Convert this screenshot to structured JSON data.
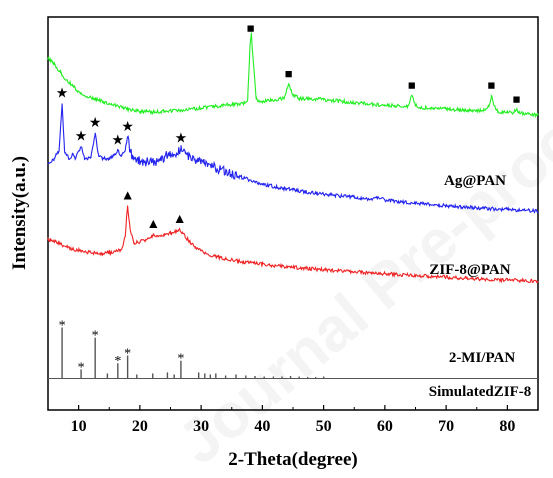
{
  "chart_data": {
    "type": "line",
    "title": "",
    "xlabel": "2-Theta(degree)",
    "ylabel": "Intensity(a.u.)",
    "xlim": [
      5,
      85
    ],
    "x_ticks": [
      10,
      20,
      30,
      40,
      50,
      60,
      70,
      80
    ],
    "y_ticks_shown": false,
    "grid": false,
    "watermark": "Journal Pre-proof",
    "series": [
      {
        "name": "Ag@PAN",
        "color": "#22ee22",
        "marker_symbol": "■",
        "peaks": [
          38.1,
          44.3,
          64.4,
          77.4,
          81.5
        ],
        "points": [
          [
            5,
            0.895
          ],
          [
            6,
            0.88
          ],
          [
            7,
            0.86
          ],
          [
            8,
            0.84
          ],
          [
            9,
            0.825
          ],
          [
            10,
            0.81
          ],
          [
            11,
            0.8
          ],
          [
            12,
            0.795
          ],
          [
            13,
            0.79
          ],
          [
            14,
            0.785
          ],
          [
            15,
            0.78
          ],
          [
            16,
            0.775
          ],
          [
            18,
            0.765
          ],
          [
            20,
            0.76
          ],
          [
            22,
            0.758
          ],
          [
            24,
            0.76
          ],
          [
            26,
            0.762
          ],
          [
            28,
            0.765
          ],
          [
            30,
            0.768
          ],
          [
            32,
            0.772
          ],
          [
            34,
            0.776
          ],
          [
            36,
            0.779
          ],
          [
            37,
            0.781
          ],
          [
            37.6,
            0.79
          ],
          [
            38.0,
            0.93
          ],
          [
            38.2,
            0.96
          ],
          [
            38.5,
            0.89
          ],
          [
            39,
            0.79
          ],
          [
            40,
            0.786
          ],
          [
            42,
            0.789
          ],
          [
            43.5,
            0.793
          ],
          [
            44.3,
            0.83
          ],
          [
            45,
            0.8
          ],
          [
            46,
            0.793
          ],
          [
            48,
            0.792
          ],
          [
            50,
            0.79
          ],
          [
            52,
            0.787
          ],
          [
            54,
            0.784
          ],
          [
            56,
            0.781
          ],
          [
            58,
            0.778
          ],
          [
            60,
            0.776
          ],
          [
            62,
            0.774
          ],
          [
            63.8,
            0.774
          ],
          [
            64.4,
            0.8
          ],
          [
            65,
            0.775
          ],
          [
            66,
            0.77
          ],
          [
            68,
            0.768
          ],
          [
            70,
            0.766
          ],
          [
            72,
            0.764
          ],
          [
            74,
            0.762
          ],
          [
            76,
            0.762
          ],
          [
            77,
            0.775
          ],
          [
            77.4,
            0.8
          ],
          [
            77.8,
            0.775
          ],
          [
            78.5,
            0.759
          ],
          [
            80,
            0.756
          ],
          [
            81,
            0.757
          ],
          [
            81.5,
            0.764
          ],
          [
            82,
            0.756
          ],
          [
            83,
            0.753
          ],
          [
            85,
            0.75
          ]
        ]
      },
      {
        "name": "ZIF-8@PAN",
        "color": "#2222ee",
        "marker_symbol": "★",
        "peaks": [
          7.3,
          10.4,
          12.7,
          16.4,
          18.0,
          26.7
        ],
        "points": [
          [
            5,
            0.628
          ],
          [
            6,
            0.64
          ],
          [
            6.8,
            0.66
          ],
          [
            7.3,
            0.78
          ],
          [
            7.7,
            0.66
          ],
          [
            8.5,
            0.638
          ],
          [
            9,
            0.65
          ],
          [
            9.5,
            0.64
          ],
          [
            10.4,
            0.67
          ],
          [
            11,
            0.64
          ],
          [
            12,
            0.642
          ],
          [
            12.7,
            0.705
          ],
          [
            13.3,
            0.645
          ],
          [
            14,
            0.64
          ],
          [
            15,
            0.638
          ],
          [
            16,
            0.65
          ],
          [
            16.4,
            0.66
          ],
          [
            17,
            0.645
          ],
          [
            17.6,
            0.66
          ],
          [
            18.0,
            0.695
          ],
          [
            18.5,
            0.655
          ],
          [
            19,
            0.64
          ],
          [
            20,
            0.635
          ],
          [
            21,
            0.632
          ],
          [
            22,
            0.63
          ],
          [
            23,
            0.632
          ],
          [
            24,
            0.645
          ],
          [
            25,
            0.65
          ],
          [
            26,
            0.655
          ],
          [
            26.7,
            0.665
          ],
          [
            27.5,
            0.655
          ],
          [
            28,
            0.645
          ],
          [
            29,
            0.638
          ],
          [
            30,
            0.63
          ],
          [
            31,
            0.625
          ],
          [
            32,
            0.618
          ],
          [
            33,
            0.612
          ],
          [
            34,
            0.606
          ],
          [
            35,
            0.6
          ],
          [
            36,
            0.595
          ],
          [
            38,
            0.585
          ],
          [
            40,
            0.575
          ],
          [
            42,
            0.568
          ],
          [
            45,
            0.56
          ],
          [
            48,
            0.553
          ],
          [
            50,
            0.549
          ],
          [
            55,
            0.541
          ],
          [
            58,
            0.537
          ],
          [
            59,
            0.54
          ],
          [
            60,
            0.534
          ],
          [
            65,
            0.526
          ],
          [
            70,
            0.52
          ],
          [
            75,
            0.514
          ],
          [
            80,
            0.51
          ],
          [
            85,
            0.506
          ]
        ]
      },
      {
        "name": "2-MI/PAN",
        "color": "#ee2222",
        "marker_symbol": "▲",
        "peaks": [
          18.0,
          22.2,
          26.5
        ],
        "points": [
          [
            5,
            0.435
          ],
          [
            6,
            0.43
          ],
          [
            7,
            0.422
          ],
          [
            8,
            0.415
          ],
          [
            9,
            0.41
          ],
          [
            10,
            0.406
          ],
          [
            11,
            0.403
          ],
          [
            12,
            0.4
          ],
          [
            13,
            0.398
          ],
          [
            14,
            0.398
          ],
          [
            15,
            0.4
          ],
          [
            16,
            0.403
          ],
          [
            17,
            0.408
          ],
          [
            17.6,
            0.44
          ],
          [
            18.0,
            0.52
          ],
          [
            18.4,
            0.46
          ],
          [
            19,
            0.425
          ],
          [
            20,
            0.428
          ],
          [
            21,
            0.433
          ],
          [
            22,
            0.44
          ],
          [
            22.2,
            0.448
          ],
          [
            23,
            0.44
          ],
          [
            24,
            0.445
          ],
          [
            25,
            0.45
          ],
          [
            26,
            0.455
          ],
          [
            26.5,
            0.46
          ],
          [
            27,
            0.45
          ],
          [
            28,
            0.43
          ],
          [
            29,
            0.415
          ],
          [
            30,
            0.405
          ],
          [
            32,
            0.392
          ],
          [
            34,
            0.384
          ],
          [
            36,
            0.379
          ],
          [
            38,
            0.375
          ],
          [
            40,
            0.371
          ],
          [
            45,
            0.363
          ],
          [
            50,
            0.357
          ],
          [
            55,
            0.352
          ],
          [
            60,
            0.347
          ],
          [
            65,
            0.342
          ],
          [
            70,
            0.338
          ],
          [
            75,
            0.334
          ],
          [
            80,
            0.331
          ],
          [
            85,
            0.328
          ]
        ]
      },
      {
        "name": "SimulatedZIF-8",
        "color": "#555555",
        "marker_symbol": "*",
        "stick_pattern": [
          [
            7.3,
            1.0
          ],
          [
            10.4,
            0.18
          ],
          [
            12.7,
            0.8
          ],
          [
            14.7,
            0.1
          ],
          [
            16.4,
            0.3
          ],
          [
            18.0,
            0.45
          ],
          [
            19.5,
            0.08
          ],
          [
            22.1,
            0.1
          ],
          [
            24.5,
            0.12
          ],
          [
            25.6,
            0.08
          ],
          [
            26.7,
            0.35
          ],
          [
            29.6,
            0.12
          ],
          [
            30.6,
            0.1
          ],
          [
            31.5,
            0.08
          ],
          [
            32.4,
            0.1
          ],
          [
            34.0,
            0.06
          ],
          [
            35.7,
            0.08
          ],
          [
            37.3,
            0.06
          ],
          [
            38.8,
            0.05
          ],
          [
            40.3,
            0.04
          ],
          [
            41.8,
            0.04
          ],
          [
            43.2,
            0.04
          ],
          [
            44.6,
            0.05
          ],
          [
            46.0,
            0.04
          ],
          [
            47.4,
            0.03
          ],
          [
            48.7,
            0.03
          ],
          [
            50.0,
            0.04
          ]
        ]
      }
    ]
  }
}
